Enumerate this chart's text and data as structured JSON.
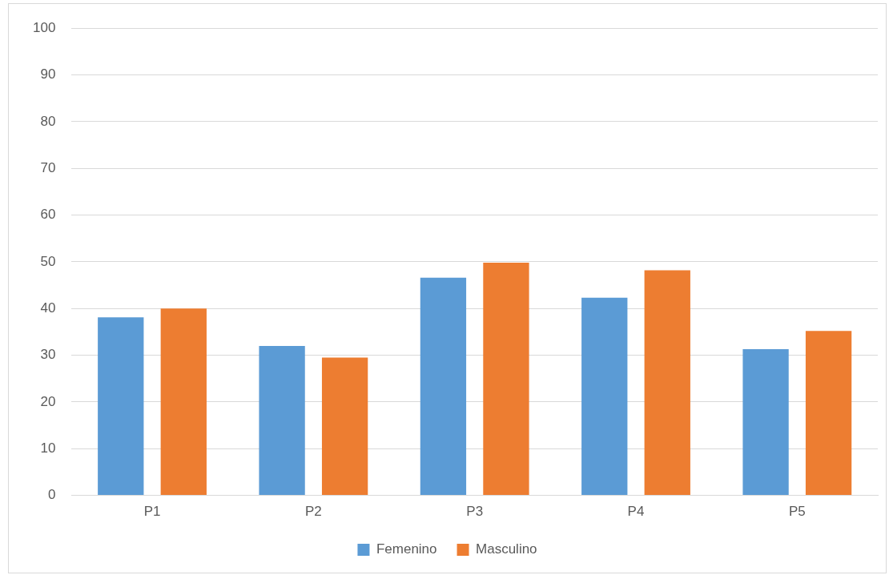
{
  "chart_data": {
    "type": "bar",
    "categories": [
      "P1",
      "P2",
      "P3",
      "P4",
      "P5"
    ],
    "series": [
      {
        "name": "Femenino",
        "color": "#5b9bd5",
        "values": [
          38.1,
          32.0,
          46.6,
          42.3,
          31.3
        ]
      },
      {
        "name": "Masculino",
        "color": "#ed7d31",
        "values": [
          40.0,
          29.5,
          49.8,
          48.2,
          35.2
        ]
      }
    ],
    "ylim": [
      0,
      100
    ],
    "yticks": [
      0,
      10,
      20,
      30,
      40,
      50,
      60,
      70,
      80,
      90,
      100
    ],
    "grid": "y",
    "legend": "bottom"
  }
}
